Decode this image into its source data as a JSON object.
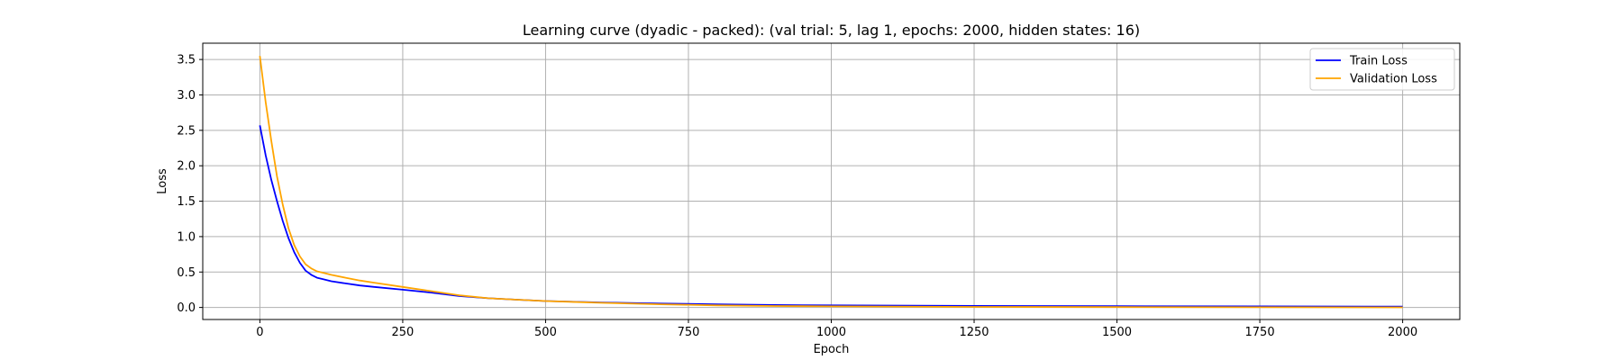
{
  "chart_data": {
    "type": "line",
    "title": "Learning curve (dyadic - packed): (val trial: 5, lag 1, epochs: 2000, hidden states: 16)",
    "xlabel": "Epoch",
    "ylabel": "Loss",
    "xlim": [
      -100,
      2100
    ],
    "ylim": [
      -0.17,
      3.73
    ],
    "xticks": [
      0,
      250,
      500,
      750,
      1000,
      1250,
      1500,
      1750,
      2000
    ],
    "xtick_labels": [
      "0",
      "250",
      "500",
      "750",
      "1000",
      "1250",
      "1500",
      "1750",
      "2000"
    ],
    "yticks": [
      0.0,
      0.5,
      1.0,
      1.5,
      2.0,
      2.5,
      3.0,
      3.5
    ],
    "ytick_labels": [
      "0.0",
      "0.5",
      "1.0",
      "1.5",
      "2.0",
      "2.5",
      "3.0",
      "3.5"
    ],
    "grid": true,
    "legend_position": "top-right",
    "series": [
      {
        "name": "Train Loss",
        "color": "#0000ff",
        "x": [
          0,
          10,
          20,
          30,
          40,
          50,
          60,
          70,
          80,
          90,
          100,
          110,
          125,
          150,
          175,
          200,
          250,
          300,
          350,
          400,
          450,
          500,
          600,
          700,
          800,
          900,
          1000,
          1250,
          1500,
          1750,
          2000
        ],
        "y": [
          2.57,
          2.15,
          1.8,
          1.5,
          1.22,
          0.98,
          0.78,
          0.63,
          0.52,
          0.46,
          0.42,
          0.4,
          0.37,
          0.34,
          0.31,
          0.29,
          0.25,
          0.21,
          0.16,
          0.13,
          0.11,
          0.09,
          0.07,
          0.055,
          0.045,
          0.035,
          0.03,
          0.022,
          0.018,
          0.015,
          0.012
        ]
      },
      {
        "name": "Validation Loss",
        "color": "#ffa500",
        "x": [
          0,
          10,
          20,
          30,
          40,
          50,
          60,
          70,
          80,
          90,
          100,
          110,
          125,
          150,
          175,
          200,
          250,
          300,
          350,
          400,
          450,
          500,
          600,
          700,
          800,
          900,
          1000,
          1250,
          1500,
          1750,
          2000
        ],
        "y": [
          3.55,
          2.9,
          2.35,
          1.85,
          1.45,
          1.12,
          0.88,
          0.72,
          0.61,
          0.55,
          0.51,
          0.49,
          0.46,
          0.42,
          0.38,
          0.35,
          0.29,
          0.23,
          0.17,
          0.13,
          0.11,
          0.09,
          0.065,
          0.045,
          0.03,
          0.02,
          0.015,
          0.008,
          0.005,
          0.003,
          0.002
        ]
      }
    ]
  }
}
